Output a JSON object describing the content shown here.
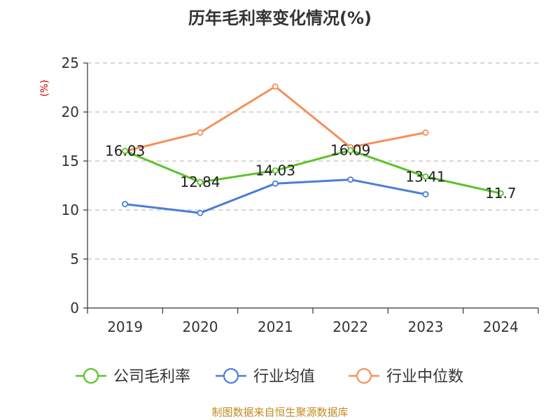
{
  "chart_data": {
    "type": "line",
    "title": "历年毛利率变化情况(%)",
    "ylabel": "(%)",
    "xlabel": "",
    "ylim": [
      0,
      25
    ],
    "yticks": [
      0,
      5,
      10,
      15,
      20,
      25
    ],
    "categories": [
      "2019",
      "2020",
      "2021",
      "2022",
      "2023",
      "2024"
    ],
    "grid": true,
    "legend_position": "bottom",
    "series": [
      {
        "name": "公司毛利率",
        "color": "#5cc22a",
        "values": [
          16.03,
          12.84,
          14.03,
          16.09,
          13.41,
          11.7
        ],
        "labels": [
          "16.03",
          "12.84",
          "14.03",
          "16.09",
          "13.41",
          "11.7"
        ]
      },
      {
        "name": "行业均值",
        "color": "#4a7fd4",
        "values": [
          10.6,
          9.7,
          12.7,
          13.1,
          11.6,
          null
        ]
      },
      {
        "name": "行业中位数",
        "color": "#f5905a",
        "values": [
          16.0,
          17.9,
          22.6,
          16.4,
          17.9,
          null
        ]
      }
    ],
    "source": "制图数据来自恒生聚源数据库"
  }
}
